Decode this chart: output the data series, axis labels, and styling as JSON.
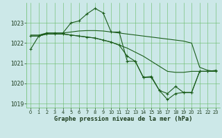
{
  "background_color": "#cce8e8",
  "grid_color": "#66bb66",
  "line_color": "#1a5c1a",
  "xlabel": "Graphe pression niveau de la mer (hPa)",
  "ylim": [
    1018.8,
    1024.0
  ],
  "xlim": [
    -0.5,
    23.5
  ],
  "yticks": [
    1019,
    1020,
    1021,
    1022,
    1023
  ],
  "xticks": [
    0,
    1,
    2,
    3,
    4,
    5,
    6,
    7,
    8,
    9,
    10,
    11,
    12,
    13,
    14,
    15,
    16,
    17,
    18,
    19,
    20,
    21,
    22,
    23
  ],
  "series0_y": [
    1021.7,
    1022.35,
    1022.5,
    1022.5,
    1022.5,
    1023.0,
    1023.1,
    1023.45,
    1023.72,
    1023.5,
    1022.55,
    1022.55,
    1021.1,
    1021.1,
    1020.3,
    1020.3,
    1019.65,
    1019.5,
    1019.85,
    1019.55,
    1019.55,
    1020.6,
    1020.6,
    1020.6
  ],
  "series1_y": [
    1022.4,
    1022.4,
    1022.5,
    1022.5,
    1022.5,
    1022.55,
    1022.6,
    1022.62,
    1022.62,
    1022.6,
    1022.55,
    1022.5,
    1022.45,
    1022.4,
    1022.35,
    1022.3,
    1022.25,
    1022.2,
    1022.15,
    1022.1,
    1022.0,
    1020.8,
    1020.65,
    1020.6
  ],
  "series2_y": [
    1022.35,
    1022.35,
    1022.45,
    1022.45,
    1022.45,
    1022.4,
    1022.35,
    1022.3,
    1022.25,
    1022.15,
    1022.05,
    1021.9,
    1021.75,
    1021.55,
    1021.35,
    1021.1,
    1020.85,
    1020.6,
    1020.55,
    1020.55,
    1020.6,
    1020.6,
    1020.6,
    1020.6
  ],
  "series3_y": [
    1022.35,
    1022.35,
    1022.45,
    1022.45,
    1022.45,
    1022.4,
    1022.35,
    1022.3,
    1022.25,
    1022.15,
    1022.05,
    1021.9,
    1021.35,
    1021.1,
    1020.3,
    1020.35,
    1019.65,
    1019.2,
    1019.5,
    1019.55,
    1019.55,
    1020.6,
    1020.6,
    1020.65
  ]
}
